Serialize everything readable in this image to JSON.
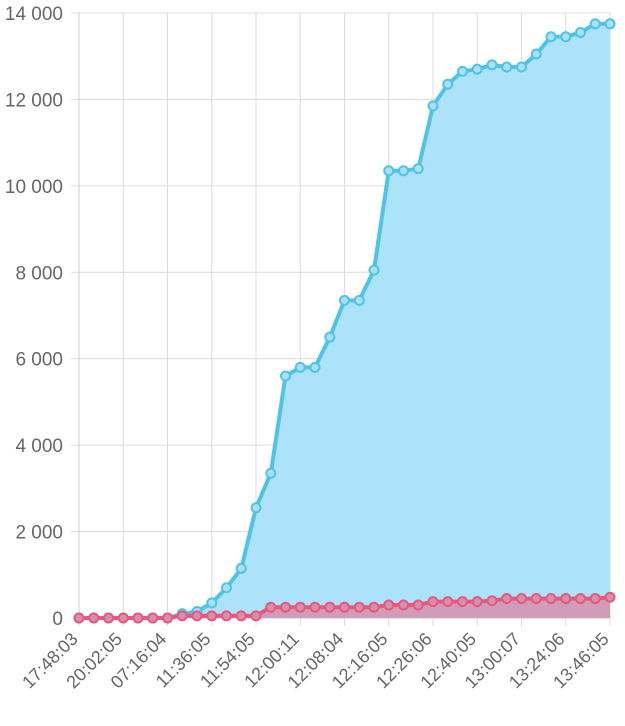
{
  "chart_data": {
    "type": "area",
    "title": "",
    "xlabel": "",
    "ylabel": "",
    "ylim": [
      0,
      14000
    ],
    "yticks": [
      0,
      2000,
      4000,
      6000,
      8000,
      10000,
      12000,
      14000
    ],
    "ytick_labels": [
      "0",
      "2 000",
      "4 000",
      "6 000",
      "8 000",
      "10 000",
      "12 000",
      "14 000"
    ],
    "grid": true,
    "legend": "none",
    "xtick_labels": [
      "17:48:03",
      "20:02:05",
      "07:16:04",
      "11:36:05",
      "11:54:05",
      "12:00:11",
      "12:08:04",
      "12:16:05",
      "12:26:06",
      "12:40:05",
      "13:00:07",
      "13:24:06",
      "13:46:05"
    ],
    "point_count": 37,
    "series": [
      {
        "color": "#4fc3e8",
        "fill": "#a8e2fa",
        "values": [
          0,
          0,
          0,
          0,
          0,
          0,
          0,
          100,
          150,
          350,
          700,
          1150,
          2550,
          3350,
          5600,
          5800,
          5800,
          6500,
          7350,
          7350,
          8050,
          10350,
          10350,
          10400,
          11850,
          12350,
          12650,
          12700,
          12800,
          12750,
          12750,
          13050,
          13450,
          13450,
          13550,
          13750,
          13750
        ]
      },
      {
        "color": "#e8587e",
        "fill": "#d590ac",
        "values": [
          0,
          0,
          0,
          0,
          0,
          0,
          0,
          50,
          50,
          50,
          50,
          50,
          50,
          250,
          250,
          250,
          250,
          250,
          250,
          250,
          250,
          300,
          300,
          300,
          380,
          380,
          380,
          380,
          400,
          450,
          450,
          450,
          450,
          450,
          450,
          450,
          480
        ]
      }
    ]
  }
}
